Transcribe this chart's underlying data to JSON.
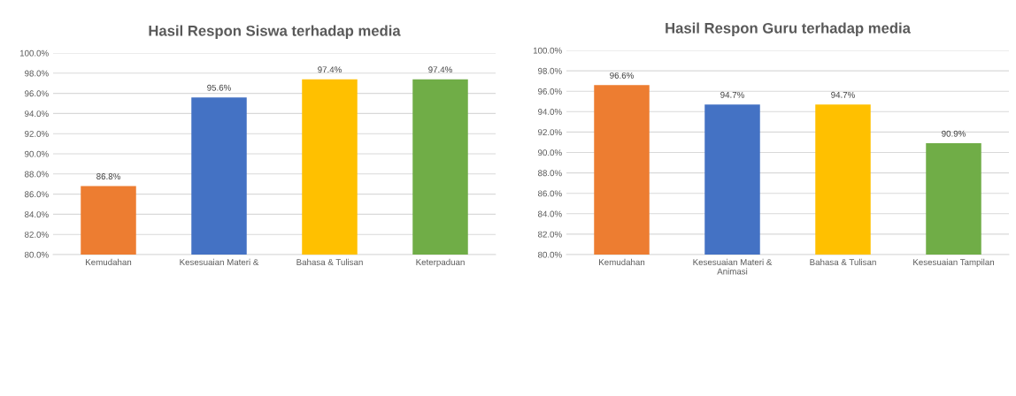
{
  "chart_data": [
    {
      "type": "bar",
      "title": "Hasil Respon Siswa terhadap media",
      "categories": [
        "Kemudahan",
        "Kesesuaian Materi &",
        "Bahasa & Tulisan",
        "Keterpaduan"
      ],
      "values": [
        86.8,
        95.6,
        97.4,
        97.4
      ],
      "colors": [
        "#ed7d31",
        "#4472c4",
        "#ffc000",
        "#70ad47"
      ],
      "value_labels": [
        "86.8%",
        "95.6%",
        "97.4%",
        "97.4%"
      ],
      "ylim": [
        80,
        100
      ],
      "yticks": [
        {
          "value": 80,
          "label": "80.0%"
        },
        {
          "value": 82,
          "label": "82.0%"
        },
        {
          "value": 84,
          "label": "84.0%"
        },
        {
          "value": 86,
          "label": "86.0%"
        },
        {
          "value": 88,
          "label": "88.0%"
        },
        {
          "value": 90,
          "label": "90.0%"
        },
        {
          "value": 92,
          "label": "92.0%"
        },
        {
          "value": 94,
          "label": "94.0%"
        },
        {
          "value": 96,
          "label": "96.0%"
        },
        {
          "value": 98,
          "label": "98.0%"
        },
        {
          "value": 100,
          "label": "100.0%"
        }
      ],
      "grid": "y"
    },
    {
      "type": "bar",
      "title": "Hasil Respon Guru terhadap media",
      "categories": [
        "Kemudahan",
        "Kesesuaian Materi &\nAnimasi",
        "Bahasa & Tulisan",
        "Kesesuaian Tampilan"
      ],
      "values": [
        96.6,
        94.7,
        94.7,
        90.9
      ],
      "colors": [
        "#ed7d31",
        "#4472c4",
        "#ffc000",
        "#70ad47"
      ],
      "value_labels": [
        "96.6%",
        "94.7%",
        "94.7%",
        "90.9%"
      ],
      "ylim": [
        80,
        100
      ],
      "yticks": [
        {
          "value": 80,
          "label": "80.0%"
        },
        {
          "value": 82,
          "label": "82.0%"
        },
        {
          "value": 84,
          "label": "84.0%"
        },
        {
          "value": 86,
          "label": "86.0%"
        },
        {
          "value": 88,
          "label": "88.0%"
        },
        {
          "value": 90,
          "label": "90.0%"
        },
        {
          "value": 92,
          "label": "92.0%"
        },
        {
          "value": 94,
          "label": "94.0%"
        },
        {
          "value": 96,
          "label": "96.0%"
        },
        {
          "value": 98,
          "label": "98.0%"
        },
        {
          "value": 100,
          "label": "100.0%"
        }
      ],
      "grid": "y"
    }
  ]
}
